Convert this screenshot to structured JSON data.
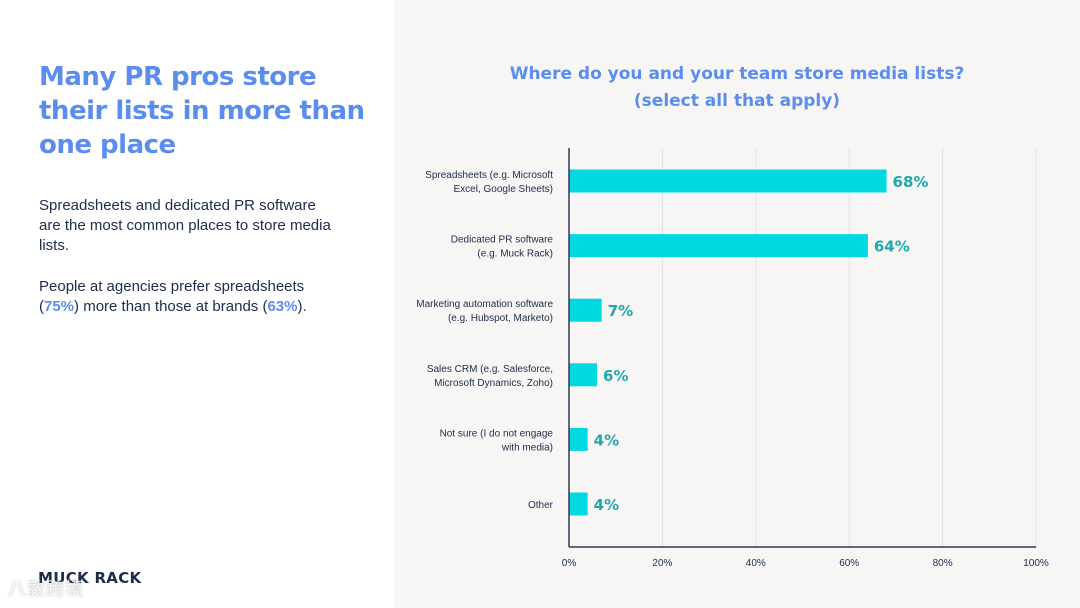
{
  "left": {
    "headline": "Many PR pros store their lists in more than one place",
    "paragraph1": "Spreadsheets and dedicated PR software are the most common places to store media lists.",
    "paragraph2_before": "People at agencies prefer spreadsheets (",
    "paragraph2_agency_pct": "75%",
    "paragraph2_middle": ") more than those at brands (",
    "paragraph2_brand_pct": "63%",
    "paragraph2_after": ").",
    "logo": "MUCK RACK",
    "watermark": "八敦跨境"
  },
  "colors": {
    "accent": "#5b8def",
    "bar": "#00d9e0",
    "value_label": "#1fa8ae",
    "text_dark": "#1d2b4d",
    "axis": "#2b3a55",
    "grid": "#e2e2e2"
  },
  "chart_data": {
    "type": "bar",
    "orientation": "horizontal",
    "title_line1": "Where do you and your team store media lists?",
    "title_line2": "(select all that apply)",
    "categories": [
      [
        "Spreadsheets (e.g. Microsoft",
        "Excel, Google Sheets)"
      ],
      [
        "Dedicated PR software",
        "(e.g. Muck Rack)"
      ],
      [
        "Marketing automation software",
        "(e.g. Hubspot, Marketo)"
      ],
      [
        "Sales CRM (e.g. Salesforce,",
        "Microsoft Dynamics, Zoho)"
      ],
      [
        "Not sure (I do not engage",
        "with media)"
      ],
      [
        "Other"
      ]
    ],
    "values": [
      68,
      64,
      7,
      6,
      4,
      4
    ],
    "value_labels": [
      "68%",
      "64%",
      "7%",
      "6%",
      "4%",
      "4%"
    ],
    "xlim": [
      0,
      100
    ],
    "xticks": [
      0,
      20,
      40,
      60,
      80,
      100
    ],
    "xtick_labels": [
      "0%",
      "20%",
      "40%",
      "60%",
      "80%",
      "100%"
    ],
    "xlabel": "",
    "ylabel": "",
    "grid": true
  }
}
